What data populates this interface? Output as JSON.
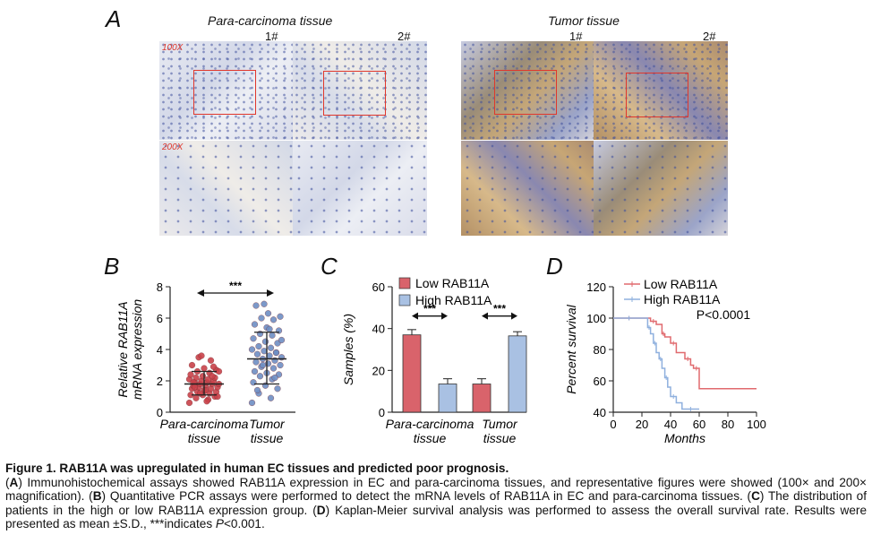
{
  "panels": {
    "A": {
      "letter": "A",
      "group_para": "Para-carcinoma tissue",
      "group_tumor": "Tumor tissue",
      "sample1": "1#",
      "sample2": "2#",
      "mag_low": "100X",
      "mag_high": "200X"
    },
    "B": {
      "letter": "B"
    },
    "C": {
      "letter": "C"
    },
    "D": {
      "letter": "D"
    }
  },
  "chart_data": [
    {
      "type": "scatter",
      "ylabel": "Relative RAB11A mRNA expression",
      "ylim": [
        0,
        8
      ],
      "yticks": [
        0,
        2,
        4,
        6,
        8
      ],
      "categories": [
        "Para-carcinoma tissue",
        "Tumor tissue"
      ],
      "series": [
        {
          "name": "Para-carcinoma tissue",
          "color": "#c9424a",
          "mean": 1.8,
          "sd_low": 1.1,
          "sd_high": 2.6,
          "values": [
            0.6,
            0.8,
            0.9,
            1.0,
            1.1,
            1.1,
            1.2,
            1.3,
            1.3,
            1.4,
            1.5,
            1.5,
            1.6,
            1.6,
            1.7,
            1.7,
            1.8,
            1.8,
            1.8,
            1.9,
            1.9,
            2.0,
            2.0,
            2.1,
            2.1,
            2.2,
            2.2,
            2.3,
            2.4,
            2.5,
            2.6,
            2.7,
            2.8,
            3.0,
            3.3,
            3.5,
            1.0,
            1.4,
            1.9,
            2.3,
            1.2,
            2.6,
            0.7,
            1.6,
            2.9,
            3.6
          ]
        },
        {
          "name": "Tumor tissue",
          "color": "#6e8fc4",
          "mean": 3.4,
          "sd_low": 1.8,
          "sd_high": 5.1,
          "values": [
            0.6,
            0.9,
            1.2,
            1.5,
            1.7,
            1.9,
            2.1,
            2.3,
            2.4,
            2.5,
            2.6,
            2.8,
            2.9,
            3.0,
            3.1,
            3.2,
            3.3,
            3.4,
            3.5,
            3.6,
            3.7,
            3.8,
            3.9,
            4.0,
            4.1,
            4.2,
            4.4,
            4.5,
            4.7,
            4.9,
            5.0,
            5.2,
            5.4,
            5.6,
            5.9,
            6.0,
            6.1,
            6.3,
            6.8,
            2.2,
            3.0,
            4.6,
            5.3,
            1.4,
            3.8,
            6.9
          ]
        }
      ],
      "annotations": [
        "***"
      ]
    },
    {
      "type": "bar",
      "ylabel": "Samples (%)",
      "ylim": [
        0,
        60
      ],
      "yticks": [
        0,
        20,
        40,
        60
      ],
      "categories": [
        "Para-carcinoma tissue",
        "Tumor tissue"
      ],
      "series": [
        {
          "name": "Low RAB11A",
          "color": "#d9636b",
          "values": [
            37,
            13.5
          ],
          "errors": [
            2.5,
            2.5
          ]
        },
        {
          "name": "High RAB11A",
          "color": "#a9c1e3",
          "values": [
            13.5,
            36.5
          ],
          "errors": [
            2.5,
            2.0
          ]
        }
      ],
      "annotations": [
        "***",
        "***"
      ],
      "legend": "top-left"
    },
    {
      "type": "line",
      "ylabel": "Percent survival",
      "xlabel": "Months",
      "xlim": [
        0,
        100
      ],
      "ylim": [
        40,
        120
      ],
      "xticks": [
        0,
        20,
        40,
        60,
        80,
        100
      ],
      "yticks": [
        40,
        60,
        80,
        100,
        120
      ],
      "series": [
        {
          "name": "Low RAB11A",
          "color": "#e06a6e",
          "x": [
            0,
            22,
            26,
            30,
            34,
            36,
            40,
            44,
            50,
            54,
            56,
            60,
            100
          ],
          "y": [
            100,
            100,
            98,
            96,
            90,
            88,
            84,
            78,
            74,
            70,
            68,
            55,
            55
          ]
        },
        {
          "name": "High RAB11A",
          "color": "#8fb0de",
          "x": [
            0,
            22,
            24,
            26,
            28,
            30,
            32,
            34,
            36,
            38,
            40,
            44,
            48,
            60
          ],
          "y": [
            100,
            100,
            94,
            90,
            84,
            78,
            74,
            68,
            62,
            56,
            50,
            46,
            42,
            42
          ]
        }
      ],
      "annotations": [
        "P<0.0001"
      ],
      "legend": "top-left"
    }
  ],
  "caption": {
    "title": "Figure 1. RAB11A was upregulated in human EC tissues and predicted poor prognosis.",
    "a_label": "A",
    "a_text": ") Immunohistochemical assays showed RAB11A expression in EC and para-carcinoma tissues, and representative figures were showed (100× and 200× magnification). (",
    "b_label": "B",
    "b_text": ") Quantitative PCR assays were performed to detect the mRNA levels of RAB11A in EC and para-carcinoma tissues. (",
    "c_label": "C",
    "c_text": ") The distribution of patients in the high or low RAB11A expression group. (",
    "d_label": "D",
    "d_text": ") Kaplan-Meier survival analysis was performed to assess the overall survival rate. Results were presented as mean ±S.D., ***indicates ",
    "p_text": "P",
    "p_tail": "<0.001."
  }
}
